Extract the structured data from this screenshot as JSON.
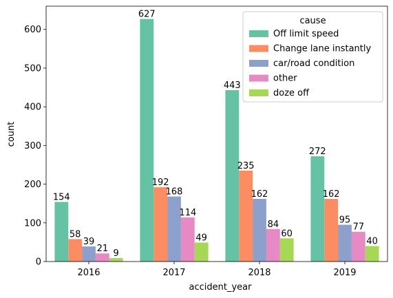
{
  "chart_data": {
    "type": "bar",
    "title": "",
    "xlabel": "accident_year",
    "ylabel": "count",
    "ylim": [
      0,
      660
    ],
    "yticks": [
      0,
      100,
      200,
      300,
      400,
      500,
      600
    ],
    "categories": [
      "2016",
      "2017",
      "2018",
      "2019"
    ],
    "legend": {
      "title": "cause",
      "placement": "top-right"
    },
    "series": [
      {
        "name": "Off limit speed",
        "color": "#66c2a5",
        "values": [
          154,
          627,
          443,
          272
        ]
      },
      {
        "name": "Change lane instantly",
        "color": "#fc8d62",
        "values": [
          58,
          192,
          235,
          162
        ]
      },
      {
        "name": "car/road condition",
        "color": "#8da0cb",
        "values": [
          39,
          168,
          162,
          95
        ]
      },
      {
        "name": "other",
        "color": "#e78ac3",
        "values": [
          21,
          114,
          84,
          77
        ]
      },
      {
        "name": "doze off",
        "color": "#a6d854",
        "values": [
          9,
          49,
          60,
          40
        ]
      }
    ]
  }
}
